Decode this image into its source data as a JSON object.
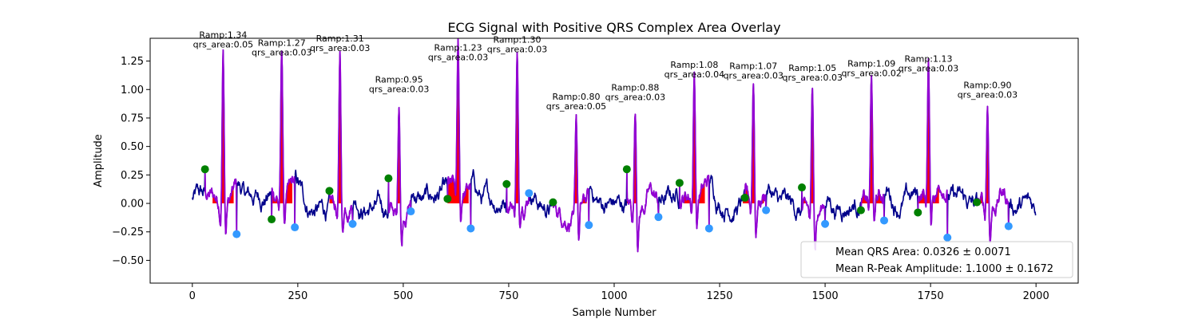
{
  "chart_data": {
    "type": "line",
    "title": "ECG Signal with Positive QRS Complex Area Overlay",
    "xlabel": "Sample Number",
    "ylabel": "Amplitude",
    "xlim": [
      -100,
      2100
    ],
    "ylim": [
      -0.7,
      1.45
    ],
    "xticks": [
      0,
      250,
      500,
      750,
      1000,
      1250,
      1500,
      1750,
      2000
    ],
    "yticks": [
      -0.5,
      -0.25,
      0.0,
      0.25,
      0.5,
      0.75,
      1.0,
      1.25
    ],
    "xtick_labels": [
      "0",
      "250",
      "500",
      "750",
      "1000",
      "1250",
      "1500",
      "1750",
      "2000"
    ],
    "ytick_labels": [
      "−0.50",
      "−0.25",
      "0.00",
      "0.25",
      "0.50",
      "0.75",
      "1.00",
      "1.25"
    ],
    "grid": false,
    "legend_position": "lower-right",
    "n_samples": 2000,
    "colors": {
      "signal": "#00008b",
      "qrs_segment": "#9400d3",
      "qrs_fill": "#ff0000",
      "onset_marker": "#008000",
      "offset_marker": "#3399ff"
    },
    "beats": [
      {
        "r": 73,
        "ramp": 1.34,
        "area": 0.05,
        "onset": 30,
        "onset_y": 0.3,
        "offset": 105,
        "offset_y": -0.27,
        "ramp_label": "Ramp:1.34",
        "area_label": "qrs_area:0.05"
      },
      {
        "r": 212,
        "ramp": 1.27,
        "area": 0.03,
        "onset": 188,
        "onset_y": -0.14,
        "offset": 243,
        "offset_y": -0.21,
        "ramp_label": "Ramp:1.27",
        "area_label": "qrs_area:0.03"
      },
      {
        "r": 350,
        "ramp": 1.31,
        "area": 0.03,
        "onset": 325,
        "onset_y": 0.11,
        "offset": 380,
        "offset_y": -0.18,
        "ramp_label": "Ramp:1.31",
        "area_label": "qrs_area:0.03"
      },
      {
        "r": 490,
        "ramp": 0.95,
        "area": 0.03,
        "onset": 465,
        "onset_y": 0.22,
        "offset": 518,
        "offset_y": -0.07,
        "ramp_label": "Ramp:0.95",
        "area_label": "qrs_area:0.03"
      },
      {
        "r": 630,
        "ramp": 1.23,
        "area": 0.03,
        "onset": 605,
        "onset_y": 0.04,
        "offset": 660,
        "offset_y": -0.22,
        "ramp_label": "Ramp:1.23",
        "area_label": "qrs_area:0.03"
      },
      {
        "r": 770,
        "ramp": 1.3,
        "area": 0.03,
        "onset": 745,
        "onset_y": 0.17,
        "offset": 798,
        "offset_y": 0.09,
        "ramp_label": "Ramp:1.30",
        "area_label": "qrs_area:0.03"
      },
      {
        "r": 910,
        "ramp": 0.8,
        "area": 0.05,
        "onset": 855,
        "onset_y": 0.01,
        "offset": 940,
        "offset_y": -0.19,
        "ramp_label": "Ramp:0.80",
        "area_label": "qrs_area:0.05"
      },
      {
        "r": 1050,
        "ramp": 0.88,
        "area": 0.03,
        "onset": 1030,
        "onset_y": 0.3,
        "offset": 1105,
        "offset_y": -0.12,
        "ramp_label": "Ramp:0.88",
        "area_label": "qrs_area:0.03"
      },
      {
        "r": 1190,
        "ramp": 1.08,
        "area": 0.04,
        "onset": 1155,
        "onset_y": 0.18,
        "offset": 1225,
        "offset_y": -0.22,
        "ramp_label": "Ramp:1.08",
        "area_label": "qrs_area:0.04"
      },
      {
        "r": 1330,
        "ramp": 1.07,
        "area": 0.03,
        "onset": 1310,
        "onset_y": 0.05,
        "offset": 1360,
        "offset_y": -0.06,
        "ramp_label": "Ramp:1.07",
        "area_label": "qrs_area:0.03"
      },
      {
        "r": 1470,
        "ramp": 1.05,
        "area": 0.03,
        "onset": 1445,
        "onset_y": 0.14,
        "offset": 1500,
        "offset_y": -0.18,
        "ramp_label": "Ramp:1.05",
        "area_label": "qrs_area:0.03"
      },
      {
        "r": 1610,
        "ramp": 1.09,
        "area": 0.02,
        "onset": 1585,
        "onset_y": -0.06,
        "offset": 1640,
        "offset_y": -0.15,
        "ramp_label": "Ramp:1.09",
        "area_label": "qrs_area:0.02"
      },
      {
        "r": 1745,
        "ramp": 1.13,
        "area": 0.03,
        "onset": 1720,
        "onset_y": -0.08,
        "offset": 1790,
        "offset_y": -0.3,
        "ramp_label": "Ramp:1.13",
        "area_label": "qrs_area:0.03"
      },
      {
        "r": 1885,
        "ramp": 0.9,
        "area": 0.03,
        "onset": 1860,
        "onset_y": 0.01,
        "offset": 1935,
        "offset_y": -0.2,
        "ramp_label": "Ramp:0.90",
        "area_label": "qrs_area:0.03"
      }
    ],
    "legend": [
      {
        "label": "Mean QRS Area: 0.0326 ± 0.0071"
      },
      {
        "label": "Mean R-Peak Amplitude: 1.1000 ± 0.1672"
      }
    ]
  }
}
